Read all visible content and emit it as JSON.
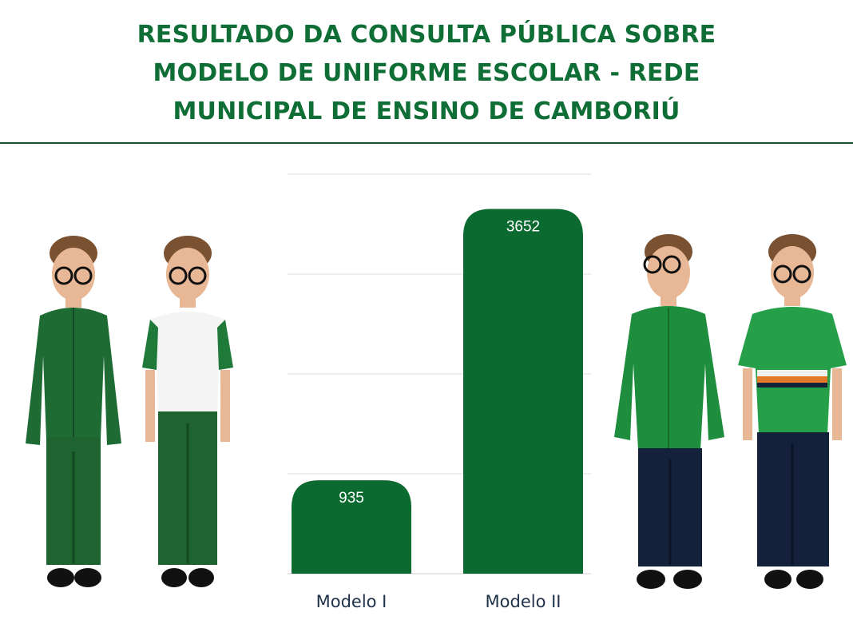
{
  "title": {
    "lines": [
      "RESULTADO DA CONSULTA PÚBLICA SOBRE",
      "MODELO DE UNIFORME ESCOLAR - REDE",
      "MUNICIPAL DE ENSINO DE CAMBORIÚ"
    ]
  },
  "colors": {
    "title": "#0f6e35",
    "bar": "#0b6a2f",
    "divider": "#17552f",
    "axis_label": "#1f3149"
  },
  "chart_data": {
    "type": "bar",
    "title": "RESULTADO DA CONSULTA PÚBLICA SOBRE MODELO DE UNIFORME ESCOLAR - REDE MUNICIPAL DE ENSINO DE CAMBORIÚ",
    "categories": [
      "Modelo I",
      "Modelo II"
    ],
    "values": [
      935,
      3652
    ],
    "ylim": [
      0,
      4000
    ],
    "grid": true,
    "legend": "none",
    "data_labels": [
      "935",
      "3652"
    ]
  },
  "photos": [
    {
      "alt": "uniform-model-1-jacket-photo",
      "shirt": "#1f6b34",
      "pants": "#1e6330"
    },
    {
      "alt": "uniform-model-1-tshirt-photo",
      "shirt": "#f4f4f4",
      "pants": "#1e6330"
    },
    {
      "alt": "uniform-model-2-jacket-photo",
      "shirt": "#1f8d3e",
      "pants": "#14213a"
    },
    {
      "alt": "uniform-model-2-tshirt-photo",
      "shirt": "#25a049",
      "pants": "#14213a"
    }
  ]
}
